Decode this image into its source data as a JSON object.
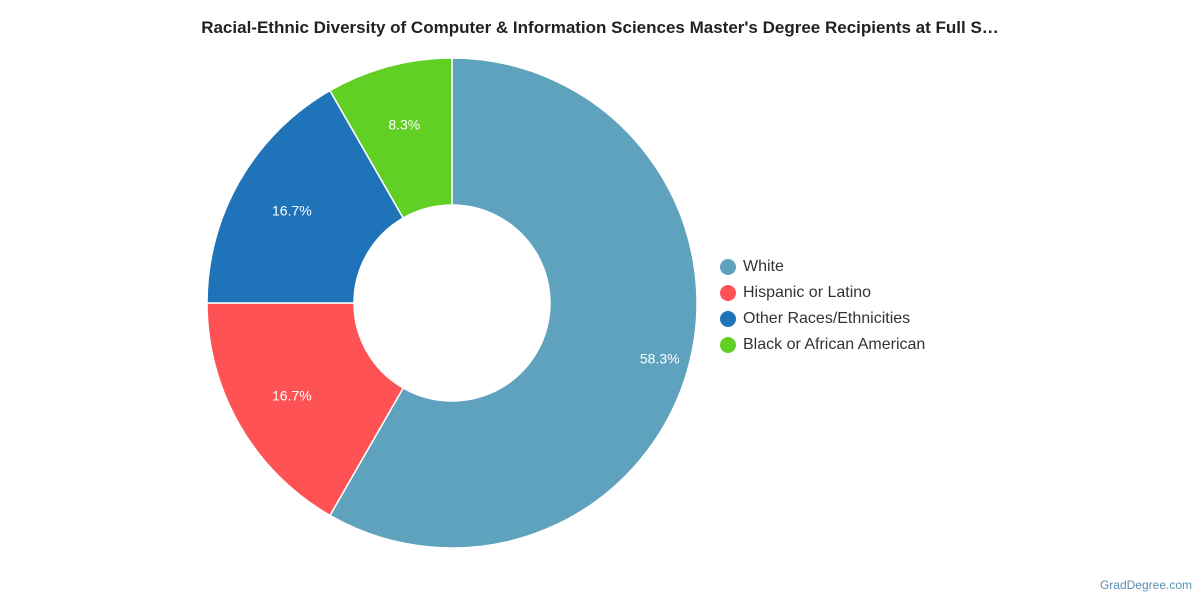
{
  "chart_data": {
    "type": "pie",
    "title": "Racial-Ethnic Diversity of Computer & Information Sciences Master's Degree Recipients at Full S…",
    "donut": true,
    "slices": [
      {
        "name": "White",
        "value": 58.3,
        "label": "58.3%",
        "color": "#5ea2be"
      },
      {
        "name": "Hispanic or Latino",
        "value": 16.7,
        "label": "16.7%",
        "color": "#ff5254"
      },
      {
        "name": "Other Races/Ethnicities",
        "value": 16.7,
        "label": "16.7%",
        "color": "#1f73b8"
      },
      {
        "name": "Black or African American",
        "value": 8.3,
        "label": "8.3%",
        "color": "#62cf24"
      }
    ],
    "legend_position": "right"
  },
  "credit": "GradDegree.com"
}
